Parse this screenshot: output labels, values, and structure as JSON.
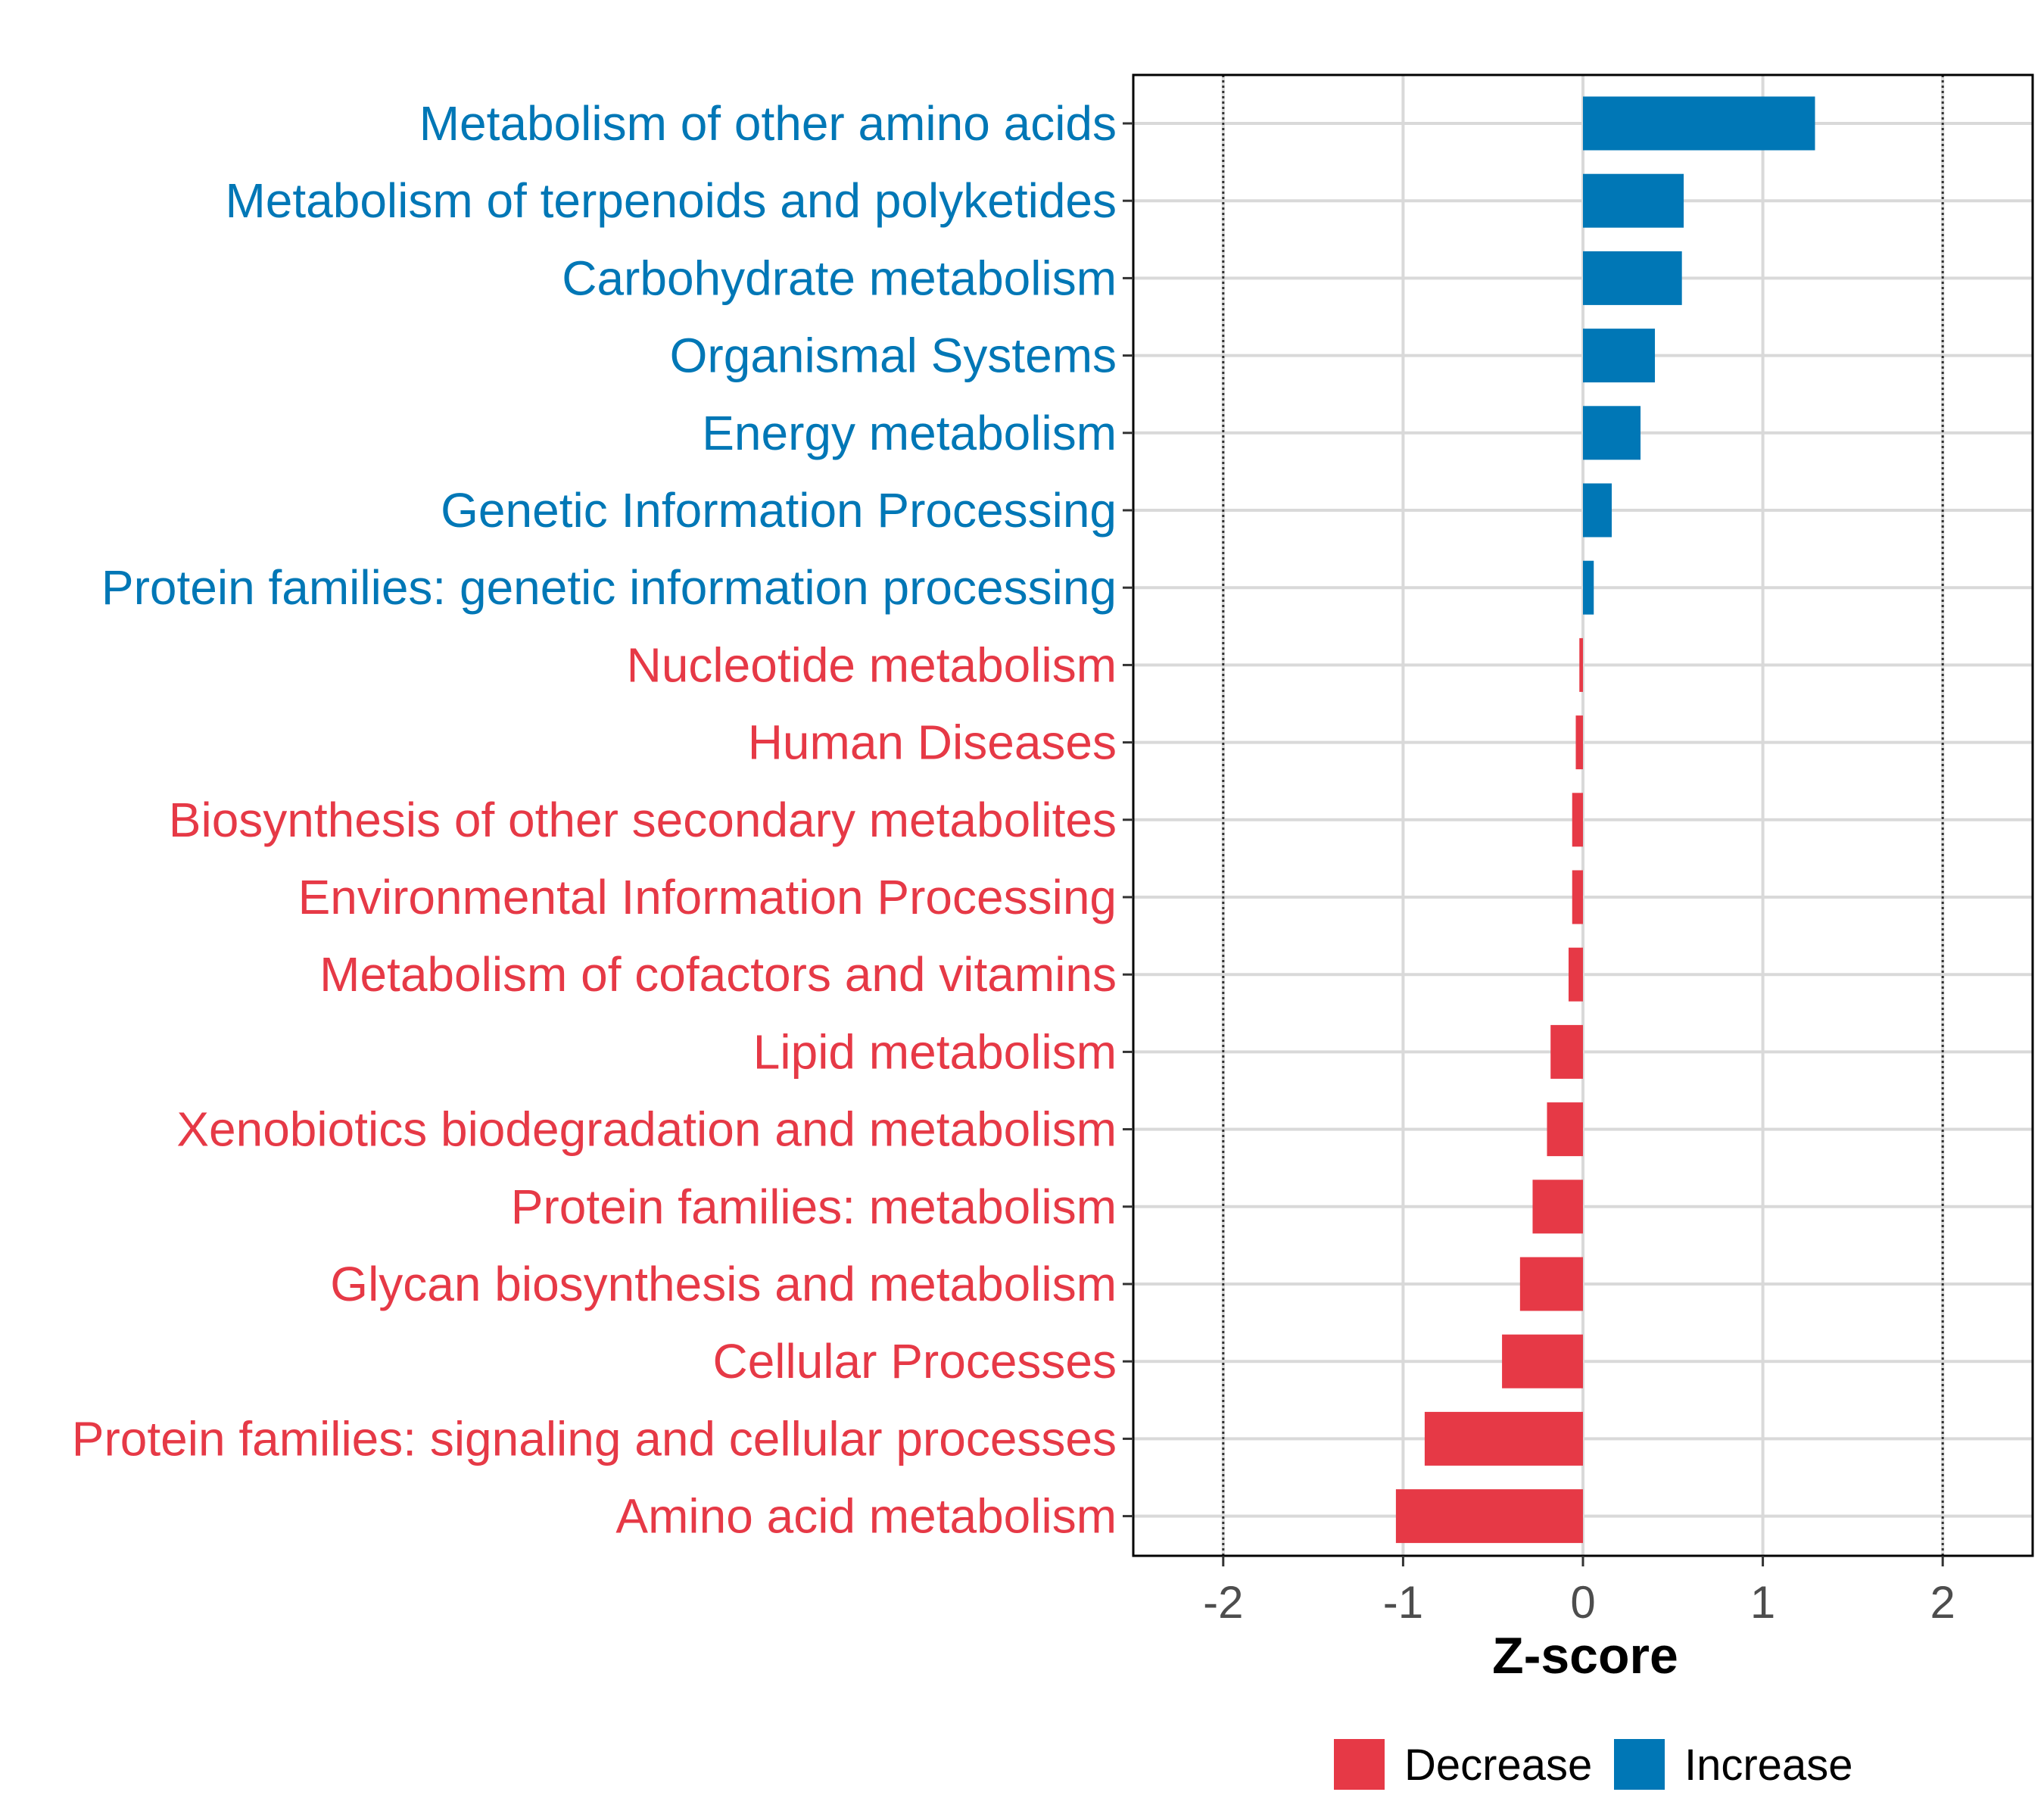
{
  "chart_data": {
    "type": "bar",
    "orientation": "horizontal",
    "title": "",
    "xlabel": "Z-score",
    "ylabel": "",
    "xlim": [
      -2.5,
      2.5
    ],
    "xticks": [
      -2,
      -1,
      0,
      1,
      2
    ],
    "xtick_labels": [
      "-2",
      "-1",
      "0",
      "1",
      "2"
    ],
    "reference_lines": [
      -2,
      2
    ],
    "grid": true,
    "categories": [
      "Metabolism of other amino acids",
      "Metabolism of terpenoids and polyketides",
      "Carbohydrate metabolism",
      "Organismal Systems",
      "Energy metabolism",
      "Genetic Information Processing",
      "Protein families: genetic information processing",
      "Nucleotide metabolism",
      "Human Diseases",
      "Biosynthesis of other secondary metabolites",
      "Environmental Information Processing",
      "Metabolism of cofactors and vitamins",
      "Lipid metabolism",
      "Xenobiotics biodegradation and metabolism",
      "Protein families: metabolism",
      "Glycan biosynthesis and metabolism",
      "Cellular Processes",
      "Protein families: signaling and cellular processes",
      "Amino acid metabolism"
    ],
    "values": [
      1.29,
      0.56,
      0.55,
      0.4,
      0.32,
      0.16,
      0.06,
      -0.02,
      -0.04,
      -0.06,
      -0.06,
      -0.08,
      -0.18,
      -0.2,
      -0.28,
      -0.35,
      -0.45,
      -0.88,
      -1.04
    ],
    "groups": [
      "Increase",
      "Increase",
      "Increase",
      "Increase",
      "Increase",
      "Increase",
      "Increase",
      "Decrease",
      "Decrease",
      "Decrease",
      "Decrease",
      "Decrease",
      "Decrease",
      "Decrease",
      "Decrease",
      "Decrease",
      "Decrease",
      "Decrease",
      "Decrease"
    ],
    "legend": {
      "position": "bottom",
      "entries": [
        {
          "label": "Decrease",
          "color": "#E63946"
        },
        {
          "label": "Increase",
          "color": "#0077B6"
        }
      ]
    },
    "colors": {
      "Decrease": "#E63946",
      "Increase": "#0077B6",
      "grid": "#D9D9D9",
      "axis": "#000000"
    }
  }
}
